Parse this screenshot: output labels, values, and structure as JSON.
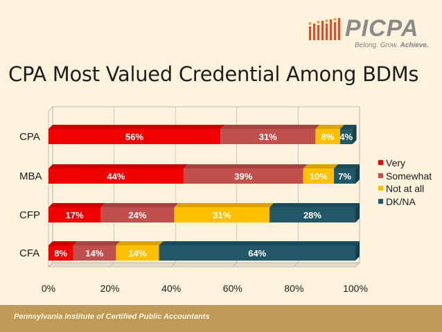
{
  "logo": {
    "name": "PICPA",
    "tagline_part1": "Belong. Grow. ",
    "tagline_part2": "Achieve."
  },
  "slide_title": "CPA Most Valued Credential Among BDMs",
  "footer_text": "Pennsylvania Institute of Certified Public Accountants",
  "colors": {
    "very": "#f00000",
    "somewhat": "#c0504d",
    "not_at_all": "#ffc000",
    "dk_na": "#215868",
    "background": "#fdf3dd",
    "footer": "#bf9a56"
  },
  "chart_data": {
    "type": "bar",
    "orientation": "horizontal",
    "stacked": true,
    "categories": [
      "CPA",
      "MBA",
      "CFP",
      "CFA"
    ],
    "series": [
      {
        "name": "Very",
        "values": [
          56,
          44,
          17,
          8
        ]
      },
      {
        "name": "Somewhat",
        "values": [
          31,
          39,
          24,
          14
        ]
      },
      {
        "name": "Not at all",
        "values": [
          8,
          10,
          31,
          14
        ]
      },
      {
        "name": "DK/NA",
        "values": [
          4,
          7,
          28,
          64
        ]
      }
    ],
    "data_labels": [
      [
        "56%",
        "31%",
        "8%",
        "4%"
      ],
      [
        "44%",
        "39%",
        "10%",
        "7%"
      ],
      [
        "17%",
        "24%",
        "31%",
        "28%"
      ],
      [
        "8%",
        "14%",
        "14%",
        "64%"
      ]
    ],
    "xlim": [
      0,
      100
    ],
    "x_ticks": [
      "0%",
      "20%",
      "40%",
      "60%",
      "80%",
      "100%"
    ],
    "grid": true,
    "legend_position": "right",
    "title": "",
    "xlabel": "",
    "ylabel": ""
  }
}
